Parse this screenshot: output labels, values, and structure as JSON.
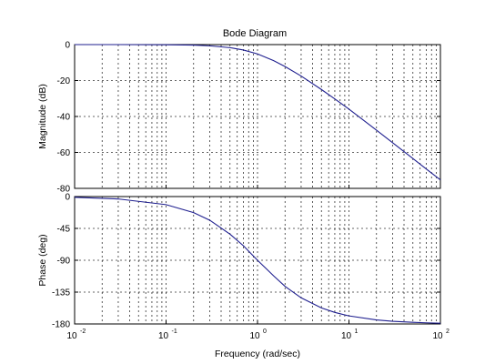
{
  "chart_data": [
    {
      "type": "line",
      "title": "Bode Diagram",
      "xlabel": "Frequency (rad/sec)",
      "ylabel": "Magnitude (dB)",
      "xscale": "log",
      "xlim": [
        0.01,
        100
      ],
      "ylim": [
        -80,
        0
      ],
      "yticks": [
        -80,
        -60,
        -40,
        -20,
        0
      ],
      "xticks": [
        "10^-2",
        "10^-1",
        "10^0",
        "10^1",
        "10^2"
      ],
      "grid": true,
      "color": "#1f1f8f",
      "series": [
        {
          "x": [
            0.01,
            0.03,
            0.1,
            0.2,
            0.3,
            0.5,
            0.7,
            1,
            1.5,
            2,
            3,
            5,
            7,
            10,
            20,
            30,
            50,
            70,
            100
          ],
          "y": [
            0,
            0,
            -0.1,
            -0.3,
            -0.7,
            -1.7,
            -3.0,
            -5.2,
            -8.9,
            -12.2,
            -17.5,
            -25.0,
            -30.2,
            -35.9,
            -47.6,
            -54.6,
            -63.4,
            -69.2,
            -75.3
          ]
        }
      ]
    },
    {
      "type": "line",
      "xlabel": "Frequency (rad/sec)",
      "ylabel": "Phase (deg)",
      "xscale": "log",
      "xlim": [
        0.01,
        100
      ],
      "ylim": [
        -180,
        0
      ],
      "yticks": [
        -180,
        -135,
        -90,
        -45,
        0
      ],
      "xticks": [
        "10^-2",
        "10^-1",
        "10^0",
        "10^1",
        "10^2"
      ],
      "grid": true,
      "color": "#1f1f8f",
      "series": [
        {
          "x": [
            0.01,
            0.03,
            0.1,
            0.2,
            0.3,
            0.5,
            0.7,
            1,
            1.5,
            2,
            3,
            5,
            7,
            10,
            20,
            30,
            50,
            70,
            100
          ],
          "y": [
            -1.1,
            -3.4,
            -11.4,
            -22.6,
            -33.4,
            -53.1,
            -69.4,
            -90.0,
            -112.0,
            -126.9,
            -143.1,
            -157.4,
            -163.7,
            -168.6,
            -174.3,
            -176.2,
            -177.7,
            -178.4,
            -178.9
          ]
        }
      ]
    }
  ]
}
